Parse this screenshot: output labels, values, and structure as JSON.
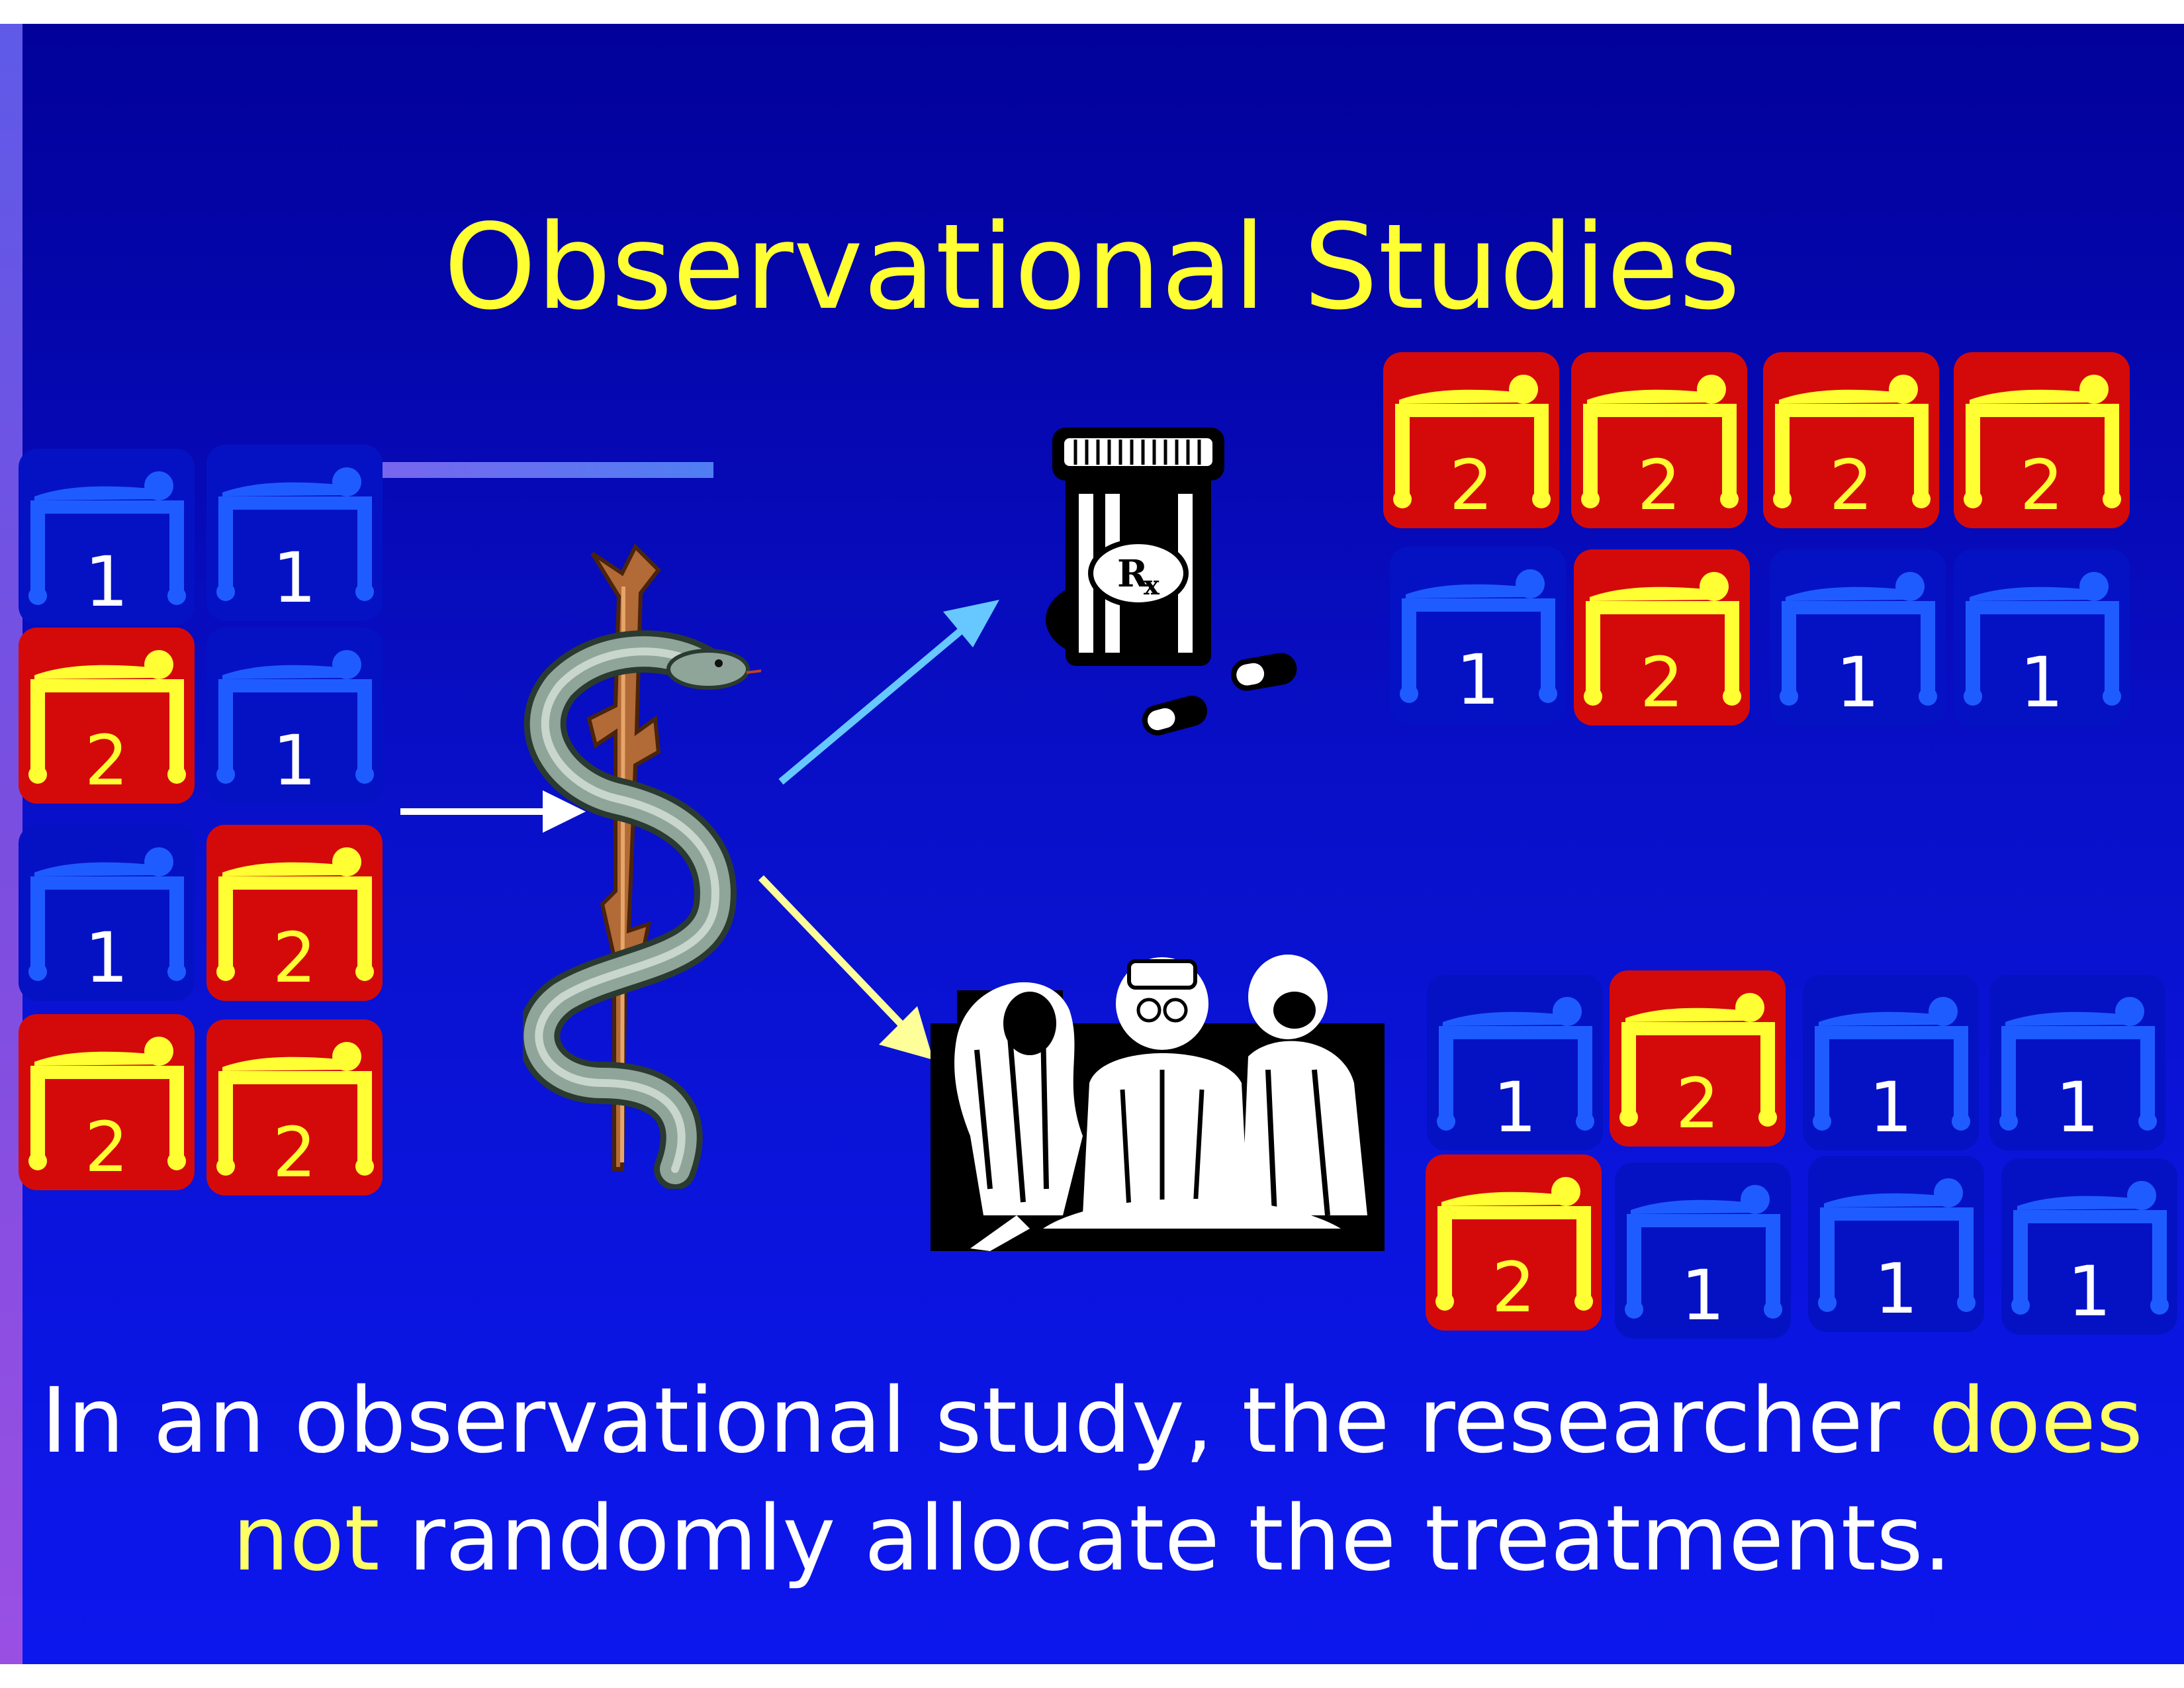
{
  "slide": {
    "title": "Observational Studies",
    "caption": {
      "part1": "In an observational study, the researcher ",
      "highlight1": "does",
      "line2_highlight": "not",
      "part2": " randomly allocate the treatments."
    },
    "colors": {
      "background": "#0a12d0",
      "title": "#ffff33",
      "highlight": "#ffff66",
      "group1_tile": "#0512c4",
      "group2_tile": "#d40a0a"
    },
    "icons": [
      "caduceus-icon",
      "pill-bottle-icon",
      "surgeons-icon",
      "patient-bed-icon",
      "arrow-icon"
    ],
    "groups": {
      "population": [
        "1",
        "1",
        "2",
        "1",
        "1",
        "2",
        "2",
        "2"
      ],
      "medication": [
        "2",
        "2",
        "2",
        "2",
        "1",
        "2",
        "1",
        "1"
      ],
      "surgery": [
        "1",
        "2",
        "1",
        "1",
        "2",
        "1",
        "1",
        "1"
      ]
    }
  }
}
